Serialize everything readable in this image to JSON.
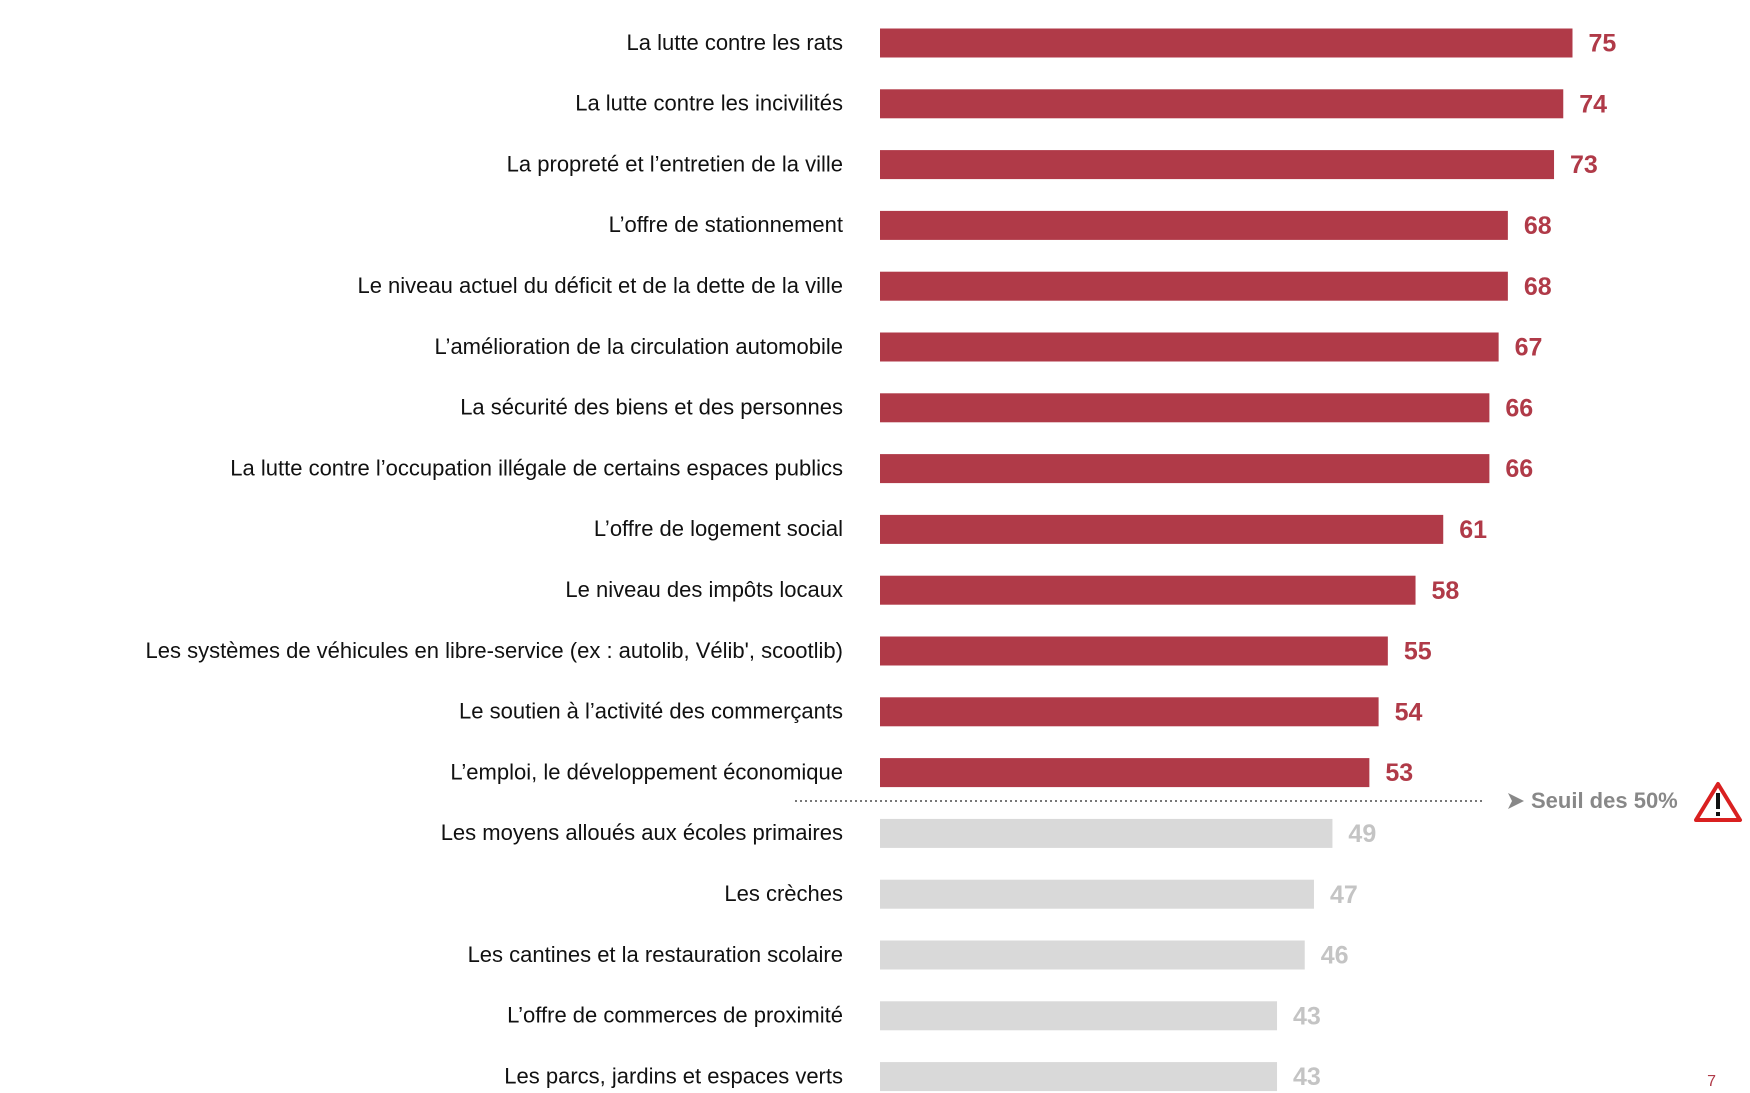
{
  "chart_data": {
    "type": "bar",
    "orientation": "horizontal",
    "categories": [
      "La lutte contre les rats",
      "La lutte contre les incivilités",
      "La propreté et l’entretien de la ville",
      "L’offre de stationnement",
      "Le niveau actuel du déficit et de la dette de la ville",
      "L’amélioration de la circulation automobile",
      "La sécurité des biens et des personnes",
      "La lutte contre l’occupation illégale de certains espaces publics",
      "L’offre de logement social",
      "Le niveau des impôts locaux",
      "Les systèmes de véhicules en libre-service (ex : autolib, Vélib', scootlib)",
      "Le soutien à l’activité des commerçants",
      "L’emploi, le développement économique",
      "Les moyens alloués aux écoles primaires",
      "Les crèches",
      "Les cantines et la restauration scolaire",
      "L’offre de commerces de proximité",
      "Les parcs, jardins et espaces verts"
    ],
    "values": [
      75,
      74,
      73,
      68,
      68,
      67,
      66,
      66,
      61,
      58,
      55,
      54,
      53,
      49,
      47,
      46,
      43,
      43
    ],
    "color": "#b03a48",
    "below_color": "#d9d9d9",
    "below_label_color": "#c4c4c4",
    "threshold": 50,
    "threshold_label": "Seuil des 50%",
    "xlim": [
      0,
      90
    ],
    "page_number": "7"
  }
}
